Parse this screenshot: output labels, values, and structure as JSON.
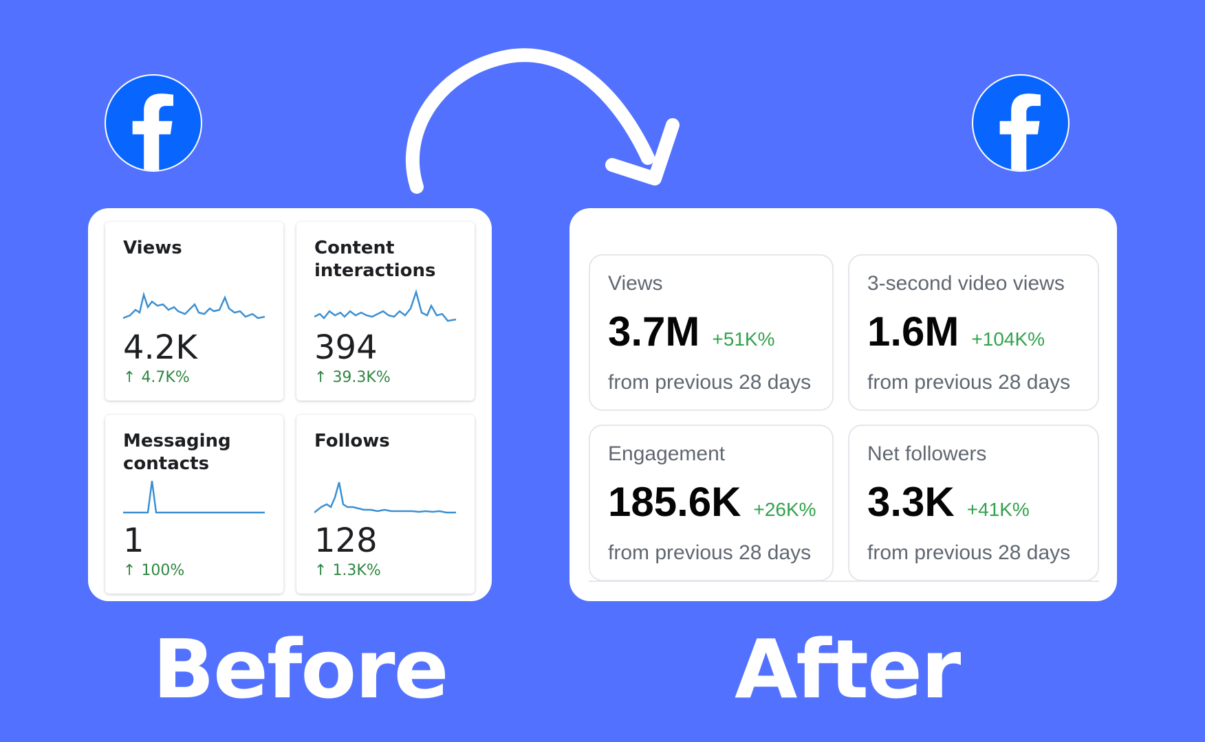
{
  "colors": {
    "background": "#5271ff",
    "facebook_blue": "#0866ff",
    "positive_green": "#2e8540",
    "spark_line": "#3b8fd1"
  },
  "before": {
    "label": "Before",
    "logo_icon": "facebook-icon",
    "cards": [
      {
        "title": "Views",
        "value": "4.2K",
        "change": "4.7K%"
      },
      {
        "title": "Content interactions",
        "value": "394",
        "change": "39.3K%"
      },
      {
        "title": "Messaging contacts",
        "value": "1",
        "change": "100%"
      },
      {
        "title": "Follows",
        "value": "128",
        "change": "1.3K%"
      }
    ]
  },
  "after": {
    "label": "After",
    "logo_icon": "facebook-icon",
    "cards": [
      {
        "title": "Views",
        "value": "3.7M",
        "change": "+51K%",
        "sub": "from previous 28 days"
      },
      {
        "title": "3-second video views",
        "value": "1.6M",
        "change": "+104K%",
        "sub": "from previous 28 days"
      },
      {
        "title": "Engagement",
        "value": "185.6K",
        "change": "+26K%",
        "sub": "from previous 28 days"
      },
      {
        "title": "Net followers",
        "value": "3.3K",
        "change": "+41K%",
        "sub": "from previous 28 days"
      }
    ]
  },
  "up_arrow_glyph": "↑",
  "arrow_icon": "curved-arrow-icon"
}
